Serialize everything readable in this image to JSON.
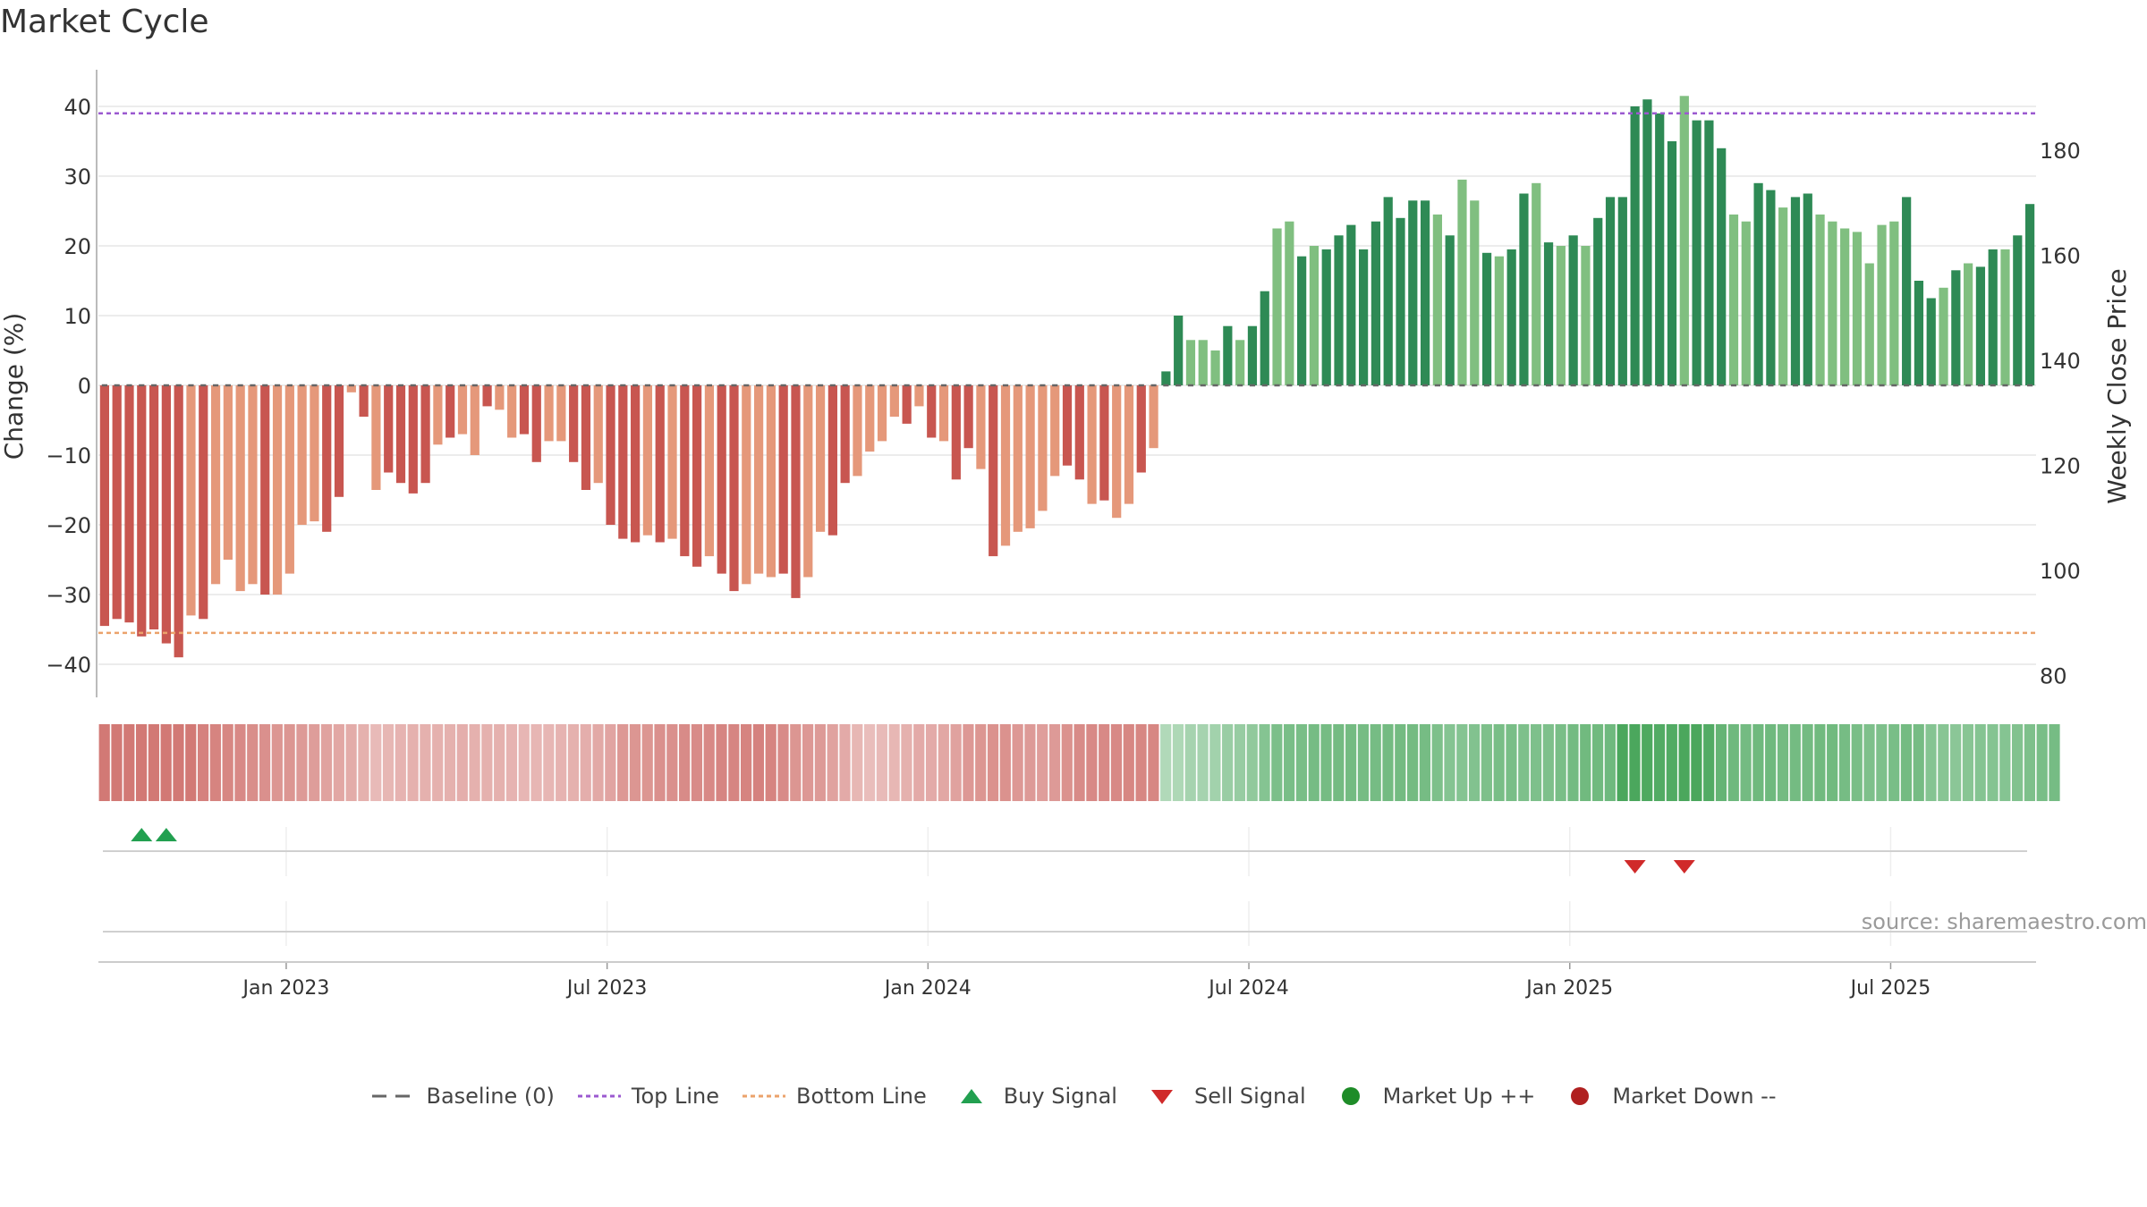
{
  "chart_title": "Market Cycle",
  "source": "source: sharemaestro.com",
  "colors": {
    "neg_dark": "#c85650",
    "neg_light": "#e5987a",
    "pos_dark": "#2e8a55",
    "pos_light": "#80bf80",
    "top_line": "#9b59d0",
    "bottom_line": "#eba26b",
    "baseline": "#666666",
    "buy": "#22a050",
    "sell": "#d02a2a",
    "market_up": "#1e8c28",
    "market_down": "#b02020"
  },
  "legend": [
    {
      "label": "Baseline (0)",
      "icon": "dash-line-icon"
    },
    {
      "label": "Top Line",
      "icon": "dotted-purple-line-icon"
    },
    {
      "label": "Bottom Line",
      "icon": "dotted-orange-line-icon"
    },
    {
      "label": "Buy Signal",
      "icon": "triangle-up-icon"
    },
    {
      "label": "Sell Signal",
      "icon": "triangle-down-icon"
    },
    {
      "label": "Market Up ++",
      "icon": "green-dot-icon"
    },
    {
      "label": "Market Down --",
      "icon": "red-dot-icon"
    }
  ],
  "chart_data": {
    "type": "bar",
    "title": "Market Cycle",
    "ylabel": "Change (%)",
    "ylabel_right": "Weekly Close Price",
    "ylim": [
      -45,
      45
    ],
    "yticks": [
      40,
      30,
      20,
      10,
      0,
      -10,
      -20,
      -30,
      -40
    ],
    "yticks_right": [
      180,
      160,
      140,
      120,
      100,
      80
    ],
    "xticks": [
      "Jan 2023",
      "Jul 2023",
      "Jan 2024",
      "Jul 2024",
      "Jan 2025",
      "Jul 2025"
    ],
    "xtick_week_index": [
      15,
      41,
      67,
      93,
      119,
      145
    ],
    "top_line": 39,
    "bottom_line": -35.5,
    "baseline": 0,
    "signals": {
      "buy_week_index": [
        3,
        5
      ],
      "sell_week_index": [
        124,
        128
      ]
    },
    "heatmap_intensity": [
      0.75,
      0.75,
      0.75,
      0.75,
      0.75,
      0.75,
      0.75,
      0.75,
      0.68,
      0.66,
      0.64,
      0.62,
      0.58,
      0.56,
      0.52,
      0.52,
      0.48,
      0.46,
      0.42,
      0.38,
      0.34,
      0.3,
      0.22,
      0.25,
      0.28,
      0.3,
      0.3,
      0.3,
      0.3,
      0.32,
      0.3,
      0.3,
      0.3,
      0.28,
      0.26,
      0.26,
      0.26,
      0.28,
      0.3,
      0.32,
      0.36,
      0.4,
      0.5,
      0.52,
      0.52,
      0.56,
      0.56,
      0.6,
      0.6,
      0.62,
      0.65,
      0.65,
      0.66,
      0.68,
      0.66,
      0.6,
      0.52,
      0.5,
      0.48,
      0.42,
      0.35,
      0.25,
      0.2,
      0.22,
      0.25,
      0.3,
      0.35,
      0.35,
      0.38,
      0.42,
      0.5,
      0.52,
      0.55,
      0.55,
      0.5,
      0.48,
      0.45,
      0.48,
      0.55,
      0.6,
      0.62,
      0.62,
      0.62,
      0.64,
      0.64,
      0.64,
      0.2,
      0.22,
      0.28,
      0.28,
      0.3,
      0.36,
      0.38,
      0.42,
      0.5,
      0.56,
      0.58,
      0.58,
      0.6,
      0.6,
      0.62,
      0.62,
      0.6,
      0.6,
      0.62,
      0.62,
      0.62,
      0.6,
      0.55,
      0.5,
      0.5,
      0.52,
      0.55,
      0.58,
      0.58,
      0.55,
      0.55,
      0.55,
      0.58,
      0.62,
      0.64,
      0.64,
      0.65,
      0.9,
      0.9,
      0.88,
      0.85,
      0.85,
      0.9,
      0.9,
      0.85,
      0.72,
      0.65,
      0.62,
      0.65,
      0.65,
      0.62,
      0.62,
      0.62,
      0.64,
      0.64,
      0.6,
      0.58,
      0.55,
      0.55,
      0.58,
      0.62,
      0.6,
      0.5,
      0.48,
      0.46,
      0.48,
      0.5,
      0.5,
      0.5,
      0.52,
      0.55,
      0.58,
      0.6
    ],
    "values": [
      -34.5,
      -33.5,
      -34,
      -36,
      -35,
      -37,
      -39,
      -33,
      -33.5,
      -28.5,
      -25,
      -29.5,
      -28.5,
      -30,
      -30,
      -27,
      -20,
      -19.5,
      -21,
      -16,
      -1,
      -4.5,
      -15,
      -12.5,
      -14,
      -15.5,
      -14,
      -8.5,
      -7.5,
      -7,
      -10,
      -3,
      -3.5,
      -7.5,
      -7,
      -11,
      -8,
      -8,
      -11,
      -15,
      -14,
      -20,
      -22,
      -22.5,
      -21.5,
      -22.5,
      -22,
      -24.5,
      -26,
      -24.5,
      -27,
      -29.5,
      -28.5,
      -27,
      -27.5,
      -27,
      -30.5,
      -27.5,
      -21,
      -21.5,
      -14,
      -13,
      -9.5,
      -8,
      -4.5,
      -5.5,
      -3,
      -7.5,
      -8,
      -13.5,
      -9,
      -12,
      -24.5,
      -23,
      -21,
      -20.5,
      -18,
      -13,
      -11.5,
      -13.5,
      -17,
      -16.5,
      -19,
      -17,
      -12.5,
      -9,
      2,
      10,
      6.5,
      6.5,
      5,
      8.5,
      6.5,
      8.5,
      13.5,
      22.5,
      23.5,
      18.5,
      20,
      19.5,
      21.5,
      23,
      19.5,
      23.5,
      27,
      24,
      26.5,
      26.5,
      24.5,
      21.5,
      29.5,
      26.5,
      19,
      18.5,
      19.5,
      27.5,
      29,
      20.5,
      20,
      21.5,
      20,
      24,
      27,
      27,
      40,
      41,
      39,
      35,
      41.5,
      38,
      38,
      34,
      24.5,
      23.5,
      29,
      28,
      25.5,
      27,
      27.5,
      24.5,
      23.5,
      22.5,
      22,
      17.5,
      23,
      23.5,
      27,
      15,
      12.5,
      14,
      16.5,
      17.5,
      17,
      19.5,
      19.5,
      21.5,
      26
    ]
  }
}
